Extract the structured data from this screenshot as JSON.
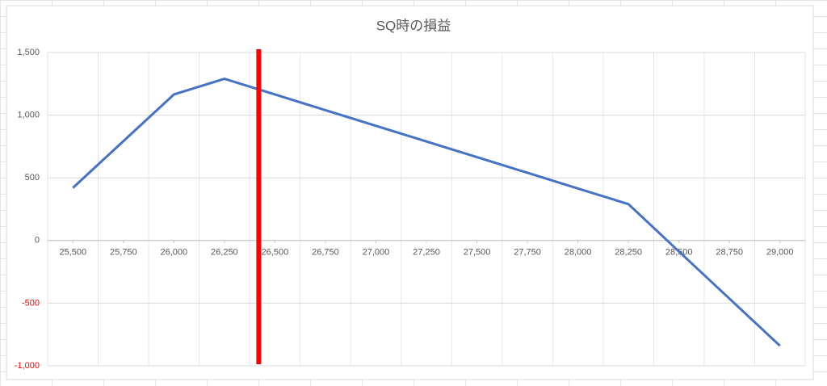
{
  "chart_data": {
    "type": "line",
    "title": "SQ時の損益",
    "x": [
      25500,
      25750,
      26000,
      26250,
      26500,
      26750,
      27000,
      27250,
      27500,
      27750,
      28000,
      28250,
      28500,
      28750,
      29000
    ],
    "xlim": [
      25375,
      29125
    ],
    "xticks": [
      {
        "value": 25500,
        "label": "25,500"
      },
      {
        "value": 25750,
        "label": "25,750"
      },
      {
        "value": 26000,
        "label": "26,000"
      },
      {
        "value": 26250,
        "label": "26,250"
      },
      {
        "value": 26500,
        "label": "26,500"
      },
      {
        "value": 26750,
        "label": "26,750"
      },
      {
        "value": 27000,
        "label": "27,000"
      },
      {
        "value": 27250,
        "label": "27,250"
      },
      {
        "value": 27500,
        "label": "27,500"
      },
      {
        "value": 27750,
        "label": "27,750"
      },
      {
        "value": 28000,
        "label": "28,000"
      },
      {
        "value": 28250,
        "label": "28,250"
      },
      {
        "value": 28500,
        "label": "28,500"
      },
      {
        "value": 28750,
        "label": "28,750"
      },
      {
        "value": 29000,
        "label": "29,000"
      }
    ],
    "series": [
      {
        "color": "#4472c4",
        "values": [
          420,
          793,
          1165,
          1290,
          1165,
          1040,
          915,
          790,
          665,
          540,
          415,
          290,
          -88,
          -464,
          -840
        ]
      }
    ],
    "ylim": [
      -1000,
      1500
    ],
    "yticks": [
      {
        "value": 1500,
        "label": "1,500"
      },
      {
        "value": 1000,
        "label": "1,000"
      },
      {
        "value": 500,
        "label": "500"
      },
      0,
      -500,
      {
        "value": -1000,
        "label": "-1,000"
      }
    ],
    "negative_tick_color": "#ff0000",
    "grid": true,
    "reference_line": {
      "x": 26420,
      "color": "#ff0000"
    }
  }
}
